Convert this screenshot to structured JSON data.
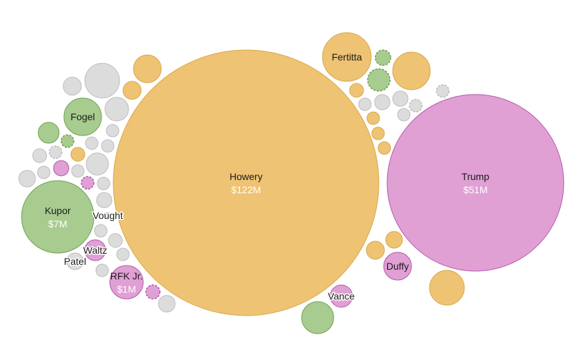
{
  "colors": {
    "orange": "#eec373",
    "orange_stroke": "#d9a748",
    "pink": "#e0a0d4",
    "pink_stroke": "#b457a9",
    "green": "#a8cc8f",
    "green_stroke": "#6e9f52",
    "gray": "#dcdcdc",
    "gray_stroke": "#bdbdbd"
  },
  "chart_data": {
    "type": "bubble",
    "bubbles": [
      {
        "name": "Howery",
        "value": "$122M",
        "color": "orange"
      },
      {
        "name": "Trump",
        "value": "$51M",
        "color": "pink"
      },
      {
        "name": "Kupor",
        "value": "$7M",
        "color": "green"
      },
      {
        "name": "RFK Jr.",
        "value": "$1M",
        "color": "pink"
      },
      {
        "name": "Fertitta",
        "value": "",
        "color": "orange"
      },
      {
        "name": "Fogel",
        "value": "",
        "color": "green"
      },
      {
        "name": "Duffy",
        "value": "",
        "color": "pink"
      },
      {
        "name": "Vance",
        "value": "",
        "color": "pink"
      },
      {
        "name": "Waltz",
        "value": "",
        "color": "pink"
      },
      {
        "name": "Patel",
        "value": "",
        "color": "gray"
      },
      {
        "name": "Vought",
        "value": "",
        "color": "pink"
      },
      {
        "name": "",
        "color": "orange"
      },
      {
        "name": "",
        "color": "orange"
      },
      {
        "name": "",
        "color": "orange"
      },
      {
        "name": "",
        "color": "orange"
      },
      {
        "name": "",
        "color": "orange"
      },
      {
        "name": "",
        "color": "orange"
      },
      {
        "name": "",
        "color": "orange"
      },
      {
        "name": "",
        "color": "orange"
      },
      {
        "name": "",
        "color": "orange"
      },
      {
        "name": "",
        "color": "orange"
      },
      {
        "name": "",
        "color": "orange"
      },
      {
        "name": "",
        "color": "pink"
      },
      {
        "name": "",
        "color": "pink",
        "dashed": true
      },
      {
        "name": "",
        "color": "pink",
        "dashed": true
      },
      {
        "name": "",
        "color": "green"
      },
      {
        "name": "",
        "color": "green"
      },
      {
        "name": "",
        "color": "green"
      },
      {
        "name": "",
        "color": "green",
        "dashed": true
      },
      {
        "name": "",
        "color": "green"
      },
      {
        "name": "",
        "color": "gray"
      },
      {
        "name": "",
        "color": "gray"
      },
      {
        "name": "",
        "color": "gray"
      },
      {
        "name": "",
        "color": "gray"
      },
      {
        "name": "",
        "color": "gray"
      },
      {
        "name": "",
        "color": "gray"
      },
      {
        "name": "",
        "color": "gray"
      },
      {
        "name": "",
        "color": "gray"
      },
      {
        "name": "",
        "color": "gray"
      },
      {
        "name": "",
        "color": "gray"
      },
      {
        "name": "",
        "color": "gray"
      },
      {
        "name": "",
        "color": "gray"
      },
      {
        "name": "",
        "color": "gray"
      },
      {
        "name": "",
        "color": "gray"
      },
      {
        "name": "",
        "color": "gray"
      },
      {
        "name": "",
        "color": "gray"
      },
      {
        "name": "",
        "color": "gray"
      },
      {
        "name": "",
        "color": "gray"
      },
      {
        "name": "",
        "color": "gray"
      },
      {
        "name": "",
        "color": "gray"
      },
      {
        "name": "",
        "color": "gray"
      },
      {
        "name": "",
        "color": "gray"
      },
      {
        "name": "",
        "color": "gray"
      },
      {
        "name": "",
        "color": "gray",
        "dashed": true
      },
      {
        "name": "",
        "color": "gray",
        "dashed": true
      }
    ]
  }
}
